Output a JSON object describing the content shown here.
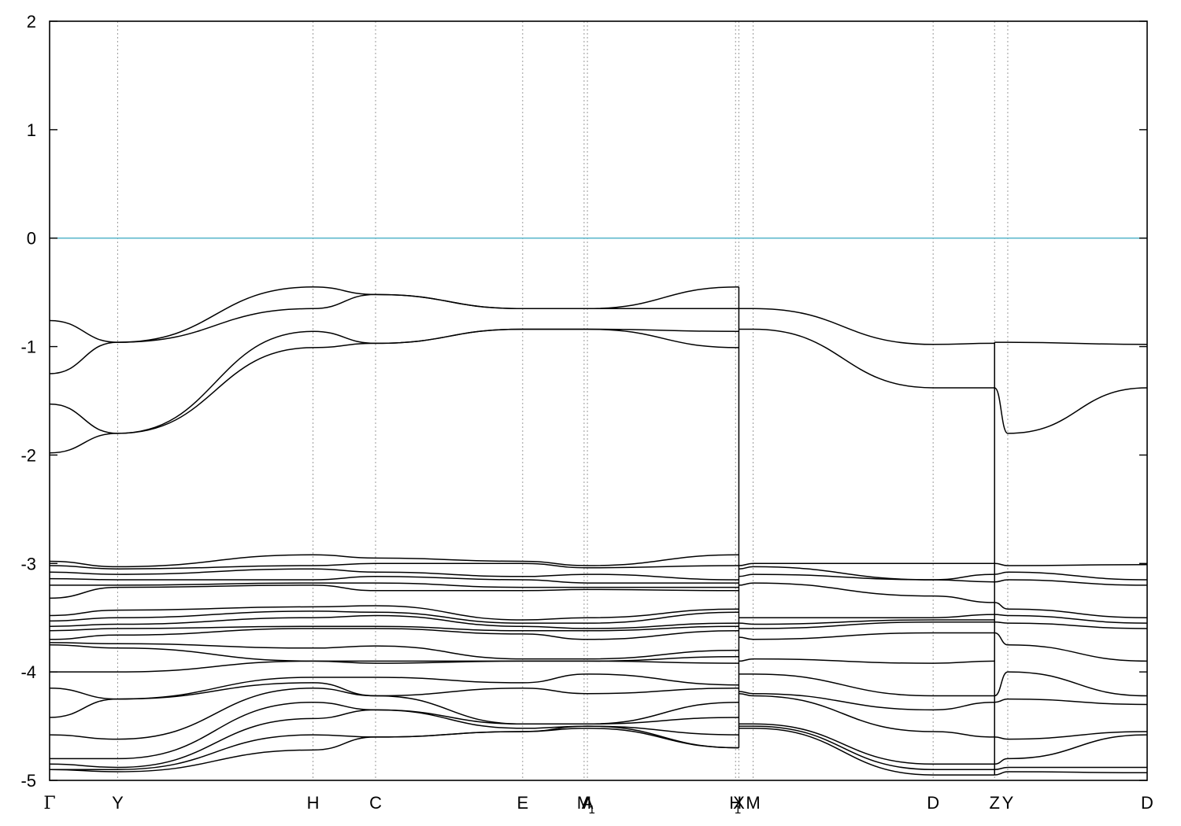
{
  "chart_data": {
    "type": "line",
    "title": "",
    "xlabel": "",
    "ylabel": "",
    "ylim": [
      -5,
      2
    ],
    "y_ticks": [
      -5,
      -4,
      -3,
      -2,
      -1,
      0,
      1,
      2
    ],
    "grid": "vertical dotted lines at k-points",
    "fermi_level": {
      "value": 0,
      "color": "#5db8cc"
    },
    "line_color": "#000000",
    "kpoints": [
      {
        "label": "Γ",
        "x": 0.0
      },
      {
        "label": "Y",
        "x": 0.062
      },
      {
        "label": "H",
        "x": 0.24
      },
      {
        "label": "C",
        "x": 0.297
      },
      {
        "label": "E",
        "x": 0.431
      },
      {
        "label": "M",
        "x": 0.487
      },
      {
        "label": "A",
        "x": 0.49
      },
      {
        "label": "1",
        "x": 0.494
      },
      {
        "label": "H",
        "x": 0.625
      },
      {
        "label": "X",
        "x": 0.628
      },
      {
        "label": "1",
        "x": 0.627
      },
      {
        "label": "M",
        "x": 0.641
      },
      {
        "label": "D",
        "x": 0.805
      },
      {
        "label": "Z",
        "x": 0.861
      },
      {
        "label": "Y",
        "x": 0.873
      },
      {
        "label": "D",
        "x": 1.0
      }
    ],
    "series": [
      {
        "x": [
          0.0,
          0.062,
          0.24,
          0.297,
          0.431,
          0.49,
          0.628
        ],
        "y": [
          -0.76,
          -0.96,
          -0.45,
          -0.52,
          -0.65,
          -0.65,
          -0.45
        ]
      },
      {
        "x": [
          0.0,
          0.062,
          0.24,
          0.297,
          0.431,
          0.49,
          0.628
        ],
        "y": [
          -1.25,
          -0.96,
          -0.65,
          -0.52,
          -0.65,
          -0.65,
          -0.65
        ]
      },
      {
        "x": [
          0.0,
          0.062,
          0.24,
          0.297,
          0.431,
          0.49,
          0.628
        ],
        "y": [
          -1.53,
          -1.8,
          -0.86,
          -0.97,
          -0.84,
          -0.84,
          -0.86
        ]
      },
      {
        "x": [
          0.0,
          0.062,
          0.24,
          0.297,
          0.431,
          0.49,
          0.628
        ],
        "y": [
          -1.98,
          -1.8,
          -1.01,
          -0.97,
          -0.84,
          -0.84,
          -1.01
        ]
      },
      {
        "x": [
          0.628,
          0.641,
          0.805,
          0.861
        ],
        "y": [
          -0.65,
          -0.65,
          -0.98,
          -0.97
        ]
      },
      {
        "x": [
          0.628,
          0.641,
          0.805,
          0.861
        ],
        "y": [
          -0.84,
          -0.84,
          -1.38,
          -1.38
        ]
      },
      {
        "x": [
          0.861,
          0.873,
          1.0
        ],
        "y": [
          -0.96,
          -0.96,
          -0.98
        ]
      },
      {
        "x": [
          0.861,
          0.873,
          1.0
        ],
        "y": [
          -1.38,
          -1.8,
          -1.38
        ]
      },
      {
        "x": [
          0.0,
          0.062,
          0.24,
          0.297,
          0.431,
          0.49,
          0.628
        ],
        "y": [
          -2.98,
          -3.03,
          -2.92,
          -2.95,
          -2.98,
          -3.02,
          -2.92
        ]
      },
      {
        "x": [
          0.0,
          0.062,
          0.24,
          0.297,
          0.431,
          0.49,
          0.628
        ],
        "y": [
          -3.02,
          -3.05,
          -3.02,
          -3.0,
          -3.0,
          -3.04,
          -3.02
        ]
      },
      {
        "x": [
          0.0,
          0.062,
          0.24,
          0.297,
          0.431,
          0.49,
          0.628
        ],
        "y": [
          -3.08,
          -3.1,
          -3.05,
          -3.08,
          -3.12,
          -3.1,
          -3.15
        ]
      },
      {
        "x": [
          0.0,
          0.062,
          0.24,
          0.297,
          0.431,
          0.49,
          0.628
        ],
        "y": [
          -3.14,
          -3.15,
          -3.15,
          -3.12,
          -3.15,
          -3.18,
          -3.18
        ]
      },
      {
        "x": [
          0.0,
          0.062,
          0.24,
          0.297,
          0.431,
          0.49,
          0.628
        ],
        "y": [
          -3.2,
          -3.2,
          -3.18,
          -3.18,
          -3.22,
          -3.22,
          -3.22
        ]
      },
      {
        "x": [
          0.0,
          0.062,
          0.24,
          0.297,
          0.431,
          0.49,
          0.628
        ],
        "y": [
          -3.32,
          -3.22,
          -3.2,
          -3.25,
          -3.25,
          -3.24,
          -3.25
        ]
      },
      {
        "x": [
          0.0,
          0.062,
          0.24,
          0.297,
          0.431,
          0.49,
          0.628
        ],
        "y": [
          -3.48,
          -3.43,
          -3.4,
          -3.39,
          -3.52,
          -3.5,
          -3.42
        ]
      },
      {
        "x": [
          0.0,
          0.062,
          0.24,
          0.297,
          0.431,
          0.49,
          0.628
        ],
        "y": [
          -3.53,
          -3.5,
          -3.44,
          -3.45,
          -3.55,
          -3.55,
          -3.45
        ]
      },
      {
        "x": [
          0.0,
          0.062,
          0.24,
          0.297,
          0.431,
          0.49,
          0.628
        ],
        "y": [
          -3.58,
          -3.56,
          -3.5,
          -3.48,
          -3.58,
          -3.6,
          -3.55
        ]
      },
      {
        "x": [
          0.0,
          0.062,
          0.24,
          0.297,
          0.431,
          0.49,
          0.628
        ],
        "y": [
          -3.62,
          -3.6,
          -3.58,
          -3.58,
          -3.62,
          -3.62,
          -3.58
        ]
      },
      {
        "x": [
          0.0,
          0.062,
          0.24,
          0.297,
          0.431,
          0.49,
          0.628
        ],
        "y": [
          -3.7,
          -3.66,
          -3.6,
          -3.6,
          -3.65,
          -3.7,
          -3.62
        ]
      },
      {
        "x": [
          0.0,
          0.062,
          0.24,
          0.297,
          0.431,
          0.49,
          0.628
        ],
        "y": [
          -3.73,
          -3.74,
          -3.78,
          -3.76,
          -3.88,
          -3.88,
          -3.8
        ]
      },
      {
        "x": [
          0.0,
          0.062,
          0.24,
          0.297,
          0.431,
          0.49,
          0.628
        ],
        "y": [
          -3.75,
          -3.78,
          -3.9,
          -3.9,
          -3.9,
          -3.9,
          -3.92
        ]
      },
      {
        "x": [
          0.0,
          0.062,
          0.24,
          0.297,
          0.431,
          0.49,
          0.628
        ],
        "y": [
          -4.0,
          -4.0,
          -3.9,
          -3.92,
          -3.9,
          -3.9,
          -3.86
        ]
      },
      {
        "x": [
          0.628,
          0.641,
          0.805,
          0.861
        ],
        "y": [
          -3.02,
          -3.0,
          -3.0,
          -3.0
        ]
      },
      {
        "x": [
          0.628,
          0.641,
          0.805,
          0.861
        ],
        "y": [
          -3.05,
          -3.03,
          -3.15,
          -3.1
        ]
      },
      {
        "x": [
          0.628,
          0.641,
          0.805,
          0.861
        ],
        "y": [
          -3.12,
          -3.1,
          -3.15,
          -3.17
        ]
      },
      {
        "x": [
          0.628,
          0.641,
          0.805,
          0.861
        ],
        "y": [
          -3.2,
          -3.18,
          -3.3,
          -3.36
        ]
      },
      {
        "x": [
          0.628,
          0.641,
          0.805,
          0.861
        ],
        "y": [
          -3.5,
          -3.5,
          -3.5,
          -3.47
        ]
      },
      {
        "x": [
          0.628,
          0.641,
          0.805,
          0.861
        ],
        "y": [
          -3.55,
          -3.56,
          -3.52,
          -3.52
        ]
      },
      {
        "x": [
          0.628,
          0.641,
          0.805,
          0.861
        ],
        "y": [
          -3.6,
          -3.6,
          -3.54,
          -3.54
        ]
      },
      {
        "x": [
          0.628,
          0.641,
          0.805,
          0.861
        ],
        "y": [
          -3.68,
          -3.7,
          -3.64,
          -3.64
        ]
      },
      {
        "x": [
          0.628,
          0.641,
          0.805,
          0.861
        ],
        "y": [
          -3.9,
          -3.88,
          -3.92,
          -3.9
        ]
      },
      {
        "x": [
          0.861,
          0.873,
          1.0
        ],
        "y": [
          -3.0,
          -3.02,
          -3.01
        ]
      },
      {
        "x": [
          0.861,
          0.873,
          1.0
        ],
        "y": [
          -3.1,
          -3.08,
          -3.15
        ]
      },
      {
        "x": [
          0.861,
          0.873,
          1.0
        ],
        "y": [
          -3.17,
          -3.15,
          -3.2
        ]
      },
      {
        "x": [
          0.861,
          0.873,
          1.0
        ],
        "y": [
          -3.36,
          -3.42,
          -3.5
        ]
      },
      {
        "x": [
          0.861,
          0.873,
          1.0
        ],
        "y": [
          -3.47,
          -3.48,
          -3.55
        ]
      },
      {
        "x": [
          0.861,
          0.873,
          1.0
        ],
        "y": [
          -3.54,
          -3.55,
          -3.6
        ]
      },
      {
        "x": [
          0.861,
          0.873,
          1.0
        ],
        "y": [
          -3.64,
          -3.75,
          -3.9
        ]
      },
      {
        "x": [
          0.0,
          0.062,
          0.24,
          0.297,
          0.431,
          0.49,
          0.628
        ],
        "y": [
          -4.15,
          -4.25,
          -4.05,
          -4.05,
          -4.1,
          -4.02,
          -4.12
        ]
      },
      {
        "x": [
          0.0,
          0.062,
          0.24,
          0.297,
          0.431,
          0.49,
          0.628
        ],
        "y": [
          -4.42,
          -4.25,
          -4.1,
          -4.22,
          -4.15,
          -4.2,
          -4.15
        ]
      },
      {
        "x": [
          0.0,
          0.062,
          0.24,
          0.297,
          0.431,
          0.49,
          0.628
        ],
        "y": [
          -4.58,
          -4.62,
          -4.15,
          -4.22,
          -4.48,
          -4.48,
          -4.28
        ]
      },
      {
        "x": [
          0.0,
          0.062,
          0.24,
          0.297,
          0.431,
          0.49,
          0.628
        ],
        "y": [
          -4.8,
          -4.8,
          -4.28,
          -4.35,
          -4.48,
          -4.48,
          -4.42
        ]
      },
      {
        "x": [
          0.0,
          0.062,
          0.24,
          0.297,
          0.431,
          0.49,
          0.628
        ],
        "y": [
          -4.85,
          -4.88,
          -4.43,
          -4.35,
          -4.52,
          -4.5,
          -4.58
        ]
      },
      {
        "x": [
          0.0,
          0.062,
          0.24,
          0.297,
          0.431,
          0.49,
          0.628
        ],
        "y": [
          -4.9,
          -4.9,
          -4.58,
          -4.6,
          -4.55,
          -4.5,
          -4.7
        ]
      },
      {
        "x": [
          0.0,
          0.062,
          0.24,
          0.297,
          0.431,
          0.49,
          0.628
        ],
        "y": [
          -4.9,
          -4.92,
          -4.72,
          -4.6,
          -4.55,
          -4.52,
          -4.7
        ]
      },
      {
        "x": [
          0.628,
          0.641,
          0.805,
          0.861
        ],
        "y": [
          -4.02,
          -4.02,
          -4.22,
          -4.22
        ]
      },
      {
        "x": [
          0.628,
          0.641,
          0.805,
          0.861
        ],
        "y": [
          -4.18,
          -4.2,
          -4.35,
          -4.28
        ]
      },
      {
        "x": [
          0.628,
          0.641,
          0.805,
          0.861
        ],
        "y": [
          -4.2,
          -4.22,
          -4.55,
          -4.6
        ]
      },
      {
        "x": [
          0.628,
          0.641,
          0.805,
          0.861
        ],
        "y": [
          -4.48,
          -4.48,
          -4.85,
          -4.85
        ]
      },
      {
        "x": [
          0.628,
          0.641,
          0.805,
          0.861
        ],
        "y": [
          -4.5,
          -4.5,
          -4.9,
          -4.9
        ]
      },
      {
        "x": [
          0.628,
          0.641,
          0.805,
          0.861
        ],
        "y": [
          -4.52,
          -4.52,
          -4.95,
          -4.95
        ]
      },
      {
        "x": [
          0.861,
          0.873,
          1.0
        ],
        "y": [
          -4.22,
          -4.0,
          -4.22
        ]
      },
      {
        "x": [
          0.861,
          0.873,
          1.0
        ],
        "y": [
          -4.28,
          -4.25,
          -4.3
        ]
      },
      {
        "x": [
          0.861,
          0.873,
          1.0
        ],
        "y": [
          -4.6,
          -4.62,
          -4.55
        ]
      },
      {
        "x": [
          0.861,
          0.873,
          1.0
        ],
        "y": [
          -4.85,
          -4.8,
          -4.58
        ]
      },
      {
        "x": [
          0.861,
          0.873,
          1.0
        ],
        "y": [
          -4.9,
          -4.88,
          -4.88
        ]
      },
      {
        "x": [
          0.861,
          0.873,
          1.0
        ],
        "y": [
          -4.95,
          -4.92,
          -4.93
        ]
      }
    ]
  }
}
